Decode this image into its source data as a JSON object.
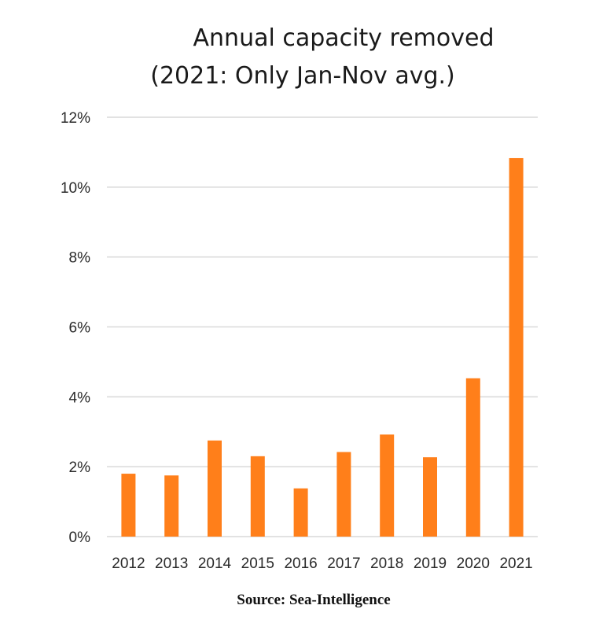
{
  "chart_data": {
    "type": "bar",
    "title": "Annual capacity removed",
    "subtitle": "(2021: Only Jan-Nov avg.)",
    "categories": [
      "2012",
      "2013",
      "2014",
      "2015",
      "2016",
      "2017",
      "2018",
      "2019",
      "2020",
      "2021"
    ],
    "values": [
      1.8,
      1.75,
      2.75,
      2.3,
      1.38,
      2.42,
      2.92,
      2.27,
      4.53,
      10.83
    ],
    "value_unit": "%",
    "ylim": [
      0,
      12
    ],
    "yticks": [
      0,
      2,
      4,
      6,
      8,
      10,
      12
    ],
    "ytick_labels": [
      "0%",
      "2%",
      "4%",
      "6%",
      "8%",
      "10%",
      "12%"
    ],
    "grid": true,
    "bar_color": "#ff7f1a",
    "grid_color": "#d9d9d9"
  },
  "source": "Source: Sea-Intelligence"
}
